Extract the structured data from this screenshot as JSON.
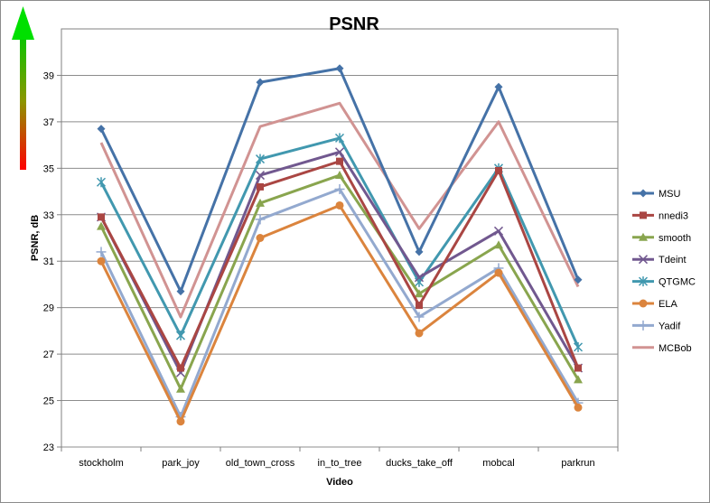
{
  "chart_data": {
    "type": "line",
    "title": "PSNR",
    "xlabel": "Video",
    "ylabel": "PSNR, dB",
    "ylim": [
      23,
      41
    ],
    "yticks": [
      23,
      25,
      27,
      29,
      31,
      33,
      35,
      37,
      39
    ],
    "grid": true,
    "legend_position": "right",
    "categories": [
      "stockholm",
      "park_joy",
      "old_town_cross",
      "in_to_tree",
      "ducks_take_off",
      "mobcal",
      "parkrun"
    ],
    "series": [
      {
        "name": "MSU",
        "color": "#4572a7",
        "marker": "diamond",
        "values": [
          36.7,
          29.7,
          38.7,
          39.3,
          31.4,
          38.5,
          30.2
        ]
      },
      {
        "name": "nnedi3",
        "color": "#aa4643",
        "marker": "square",
        "values": [
          32.9,
          26.4,
          34.2,
          35.3,
          29.1,
          34.9,
          26.4
        ]
      },
      {
        "name": "smooth",
        "color": "#89a54e",
        "marker": "triangle",
        "values": [
          32.5,
          25.5,
          33.5,
          34.7,
          29.6,
          31.7,
          25.9
        ]
      },
      {
        "name": "Tdeint",
        "color": "#71588f",
        "marker": "x",
        "values": [
          32.9,
          26.2,
          34.7,
          35.7,
          30.3,
          32.3,
          26.4
        ]
      },
      {
        "name": "QTGMC",
        "color": "#4198af",
        "marker": "star",
        "values": [
          34.4,
          27.8,
          35.4,
          36.3,
          30.1,
          35.0,
          27.3
        ]
      },
      {
        "name": "ELA",
        "color": "#db843d",
        "marker": "circle",
        "values": [
          31.0,
          24.1,
          32.0,
          33.4,
          27.9,
          30.5,
          24.7
        ]
      },
      {
        "name": "Yadif",
        "color": "#93a9cf",
        "marker": "plus",
        "values": [
          31.4,
          24.3,
          32.8,
          34.1,
          28.6,
          30.7,
          24.9
        ]
      },
      {
        "name": "MCBob",
        "color": "#d19392",
        "marker": "none",
        "values": [
          36.1,
          28.6,
          36.8,
          37.8,
          32.4,
          37.0,
          29.9
        ]
      }
    ]
  }
}
